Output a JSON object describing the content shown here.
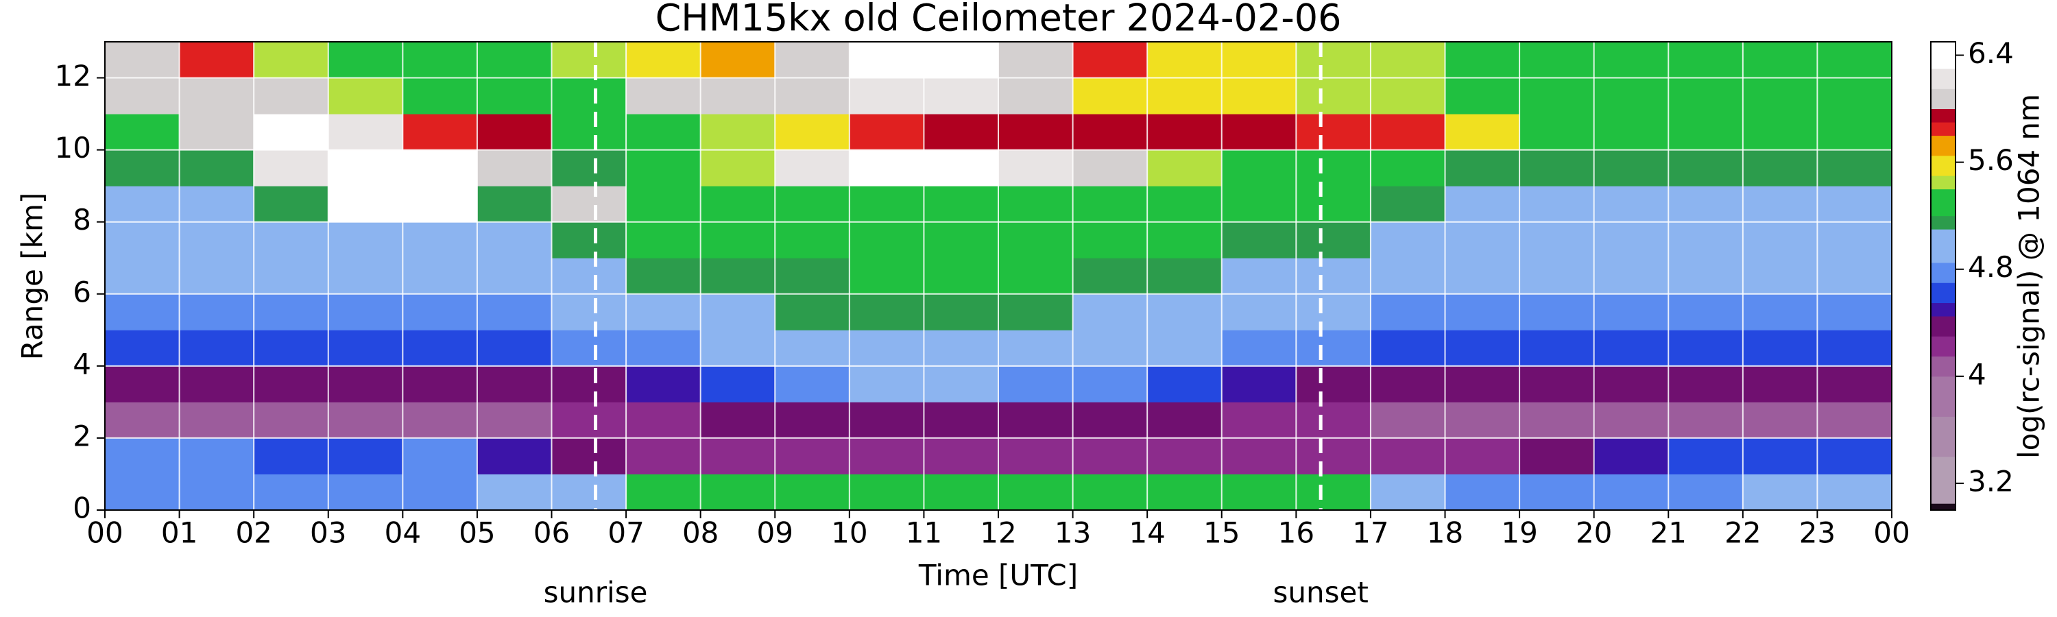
{
  "chart_data": {
    "type": "heatmap",
    "title": "CHM15kx old Ceilometer 2024-02-06",
    "xlabel": "Time [UTC]",
    "ylabel": "Range [km]",
    "colorbar_label": "log(rc-signal) @ 1064 nm",
    "xlim": [
      0,
      24
    ],
    "xticks": [
      {
        "value": 0,
        "label": "00"
      },
      {
        "value": 1,
        "label": "01"
      },
      {
        "value": 2,
        "label": "02"
      },
      {
        "value": 3,
        "label": "03"
      },
      {
        "value": 4,
        "label": "04"
      },
      {
        "value": 5,
        "label": "05"
      },
      {
        "value": 6,
        "label": "06"
      },
      {
        "value": 7,
        "label": "07"
      },
      {
        "value": 8,
        "label": "08"
      },
      {
        "value": 9,
        "label": "09"
      },
      10,
      11,
      12,
      13,
      14,
      15,
      16,
      17,
      18,
      19,
      20,
      21,
      22,
      23,
      {
        "value": 24,
        "label": "00"
      }
    ],
    "ylim": [
      0,
      13
    ],
    "yticks": [
      0,
      2,
      4,
      6,
      8,
      10,
      12
    ],
    "grid": true,
    "clim": [
      3.0,
      6.5
    ],
    "cticks": [
      3.2,
      4,
      4.8,
      5.6,
      6.4
    ],
    "colormap": [
      {
        "value": 3.0,
        "color": "#1a0a1a"
      },
      {
        "value": 3.05,
        "color": "#b49eb4"
      },
      {
        "value": 3.4,
        "color": "#ac8aac"
      },
      {
        "value": 3.7,
        "color": "#a676a6"
      },
      {
        "value": 4.0,
        "color": "#9c5c9c"
      },
      {
        "value": 4.15,
        "color": "#8c2c8c"
      },
      {
        "value": 4.3,
        "color": "#701070"
      },
      {
        "value": 4.45,
        "color": "#3c14a8"
      },
      {
        "value": 4.55,
        "color": "#2448e0"
      },
      {
        "value": 4.7,
        "color": "#5c8cf0"
      },
      {
        "value": 4.85,
        "color": "#8cb4f0"
      },
      {
        "value": 5.1,
        "color": "#2c9c4c"
      },
      {
        "value": 5.2,
        "color": "#20c040"
      },
      {
        "value": 5.4,
        "color": "#b4e040"
      },
      {
        "value": 5.5,
        "color": "#f0e020"
      },
      {
        "value": 5.65,
        "color": "#f0a000"
      },
      {
        "value": 5.8,
        "color": "#e02020"
      },
      {
        "value": 5.9,
        "color": "#b00020"
      },
      {
        "value": 6.0,
        "color": "#d4d0d0"
      },
      {
        "value": 6.15,
        "color": "#e8e4e4"
      },
      {
        "value": 6.3,
        "color": "#ffffff"
      }
    ],
    "x": [
      0,
      1,
      2,
      3,
      4,
      5,
      6,
      7,
      8,
      9,
      10,
      11,
      12,
      13,
      14,
      15,
      16,
      17,
      18,
      19,
      20,
      21,
      22,
      23
    ],
    "y": [
      0,
      1,
      2,
      3,
      4,
      5,
      6,
      7,
      8,
      9,
      10,
      11,
      12
    ],
    "z": [
      [
        4.8,
        4.8,
        4.8,
        4.8,
        4.8,
        4.9,
        4.9,
        5.2,
        5.2,
        5.2,
        5.2,
        5.2,
        5.2,
        5.2,
        5.2,
        5.2,
        5.2,
        4.9,
        4.8,
        4.8,
        4.8,
        4.8,
        4.9,
        4.9
      ],
      [
        4.7,
        4.7,
        4.6,
        4.6,
        4.7,
        4.5,
        4.3,
        4.2,
        4.2,
        4.2,
        4.2,
        4.2,
        4.2,
        4.2,
        4.2,
        4.2,
        4.2,
        4.2,
        4.2,
        4.3,
        4.5,
        4.6,
        4.6,
        4.6
      ],
      [
        4.1,
        4.1,
        4.1,
        4.1,
        4.1,
        4.1,
        4.2,
        4.2,
        4.3,
        4.4,
        4.4,
        4.4,
        4.4,
        4.3,
        4.3,
        4.2,
        4.2,
        4.1,
        4.1,
        4.1,
        4.1,
        4.1,
        4.1,
        4.1
      ],
      [
        4.3,
        4.3,
        4.3,
        4.3,
        4.3,
        4.3,
        4.4,
        4.5,
        4.6,
        4.8,
        4.9,
        4.9,
        4.8,
        4.7,
        4.6,
        4.5,
        4.4,
        4.3,
        4.3,
        4.3,
        4.3,
        4.3,
        4.3,
        4.3
      ],
      [
        4.6,
        4.6,
        4.6,
        4.6,
        4.6,
        4.6,
        4.7,
        4.8,
        4.9,
        5.0,
        5.0,
        5.0,
        5.0,
        5.0,
        4.9,
        4.8,
        4.7,
        4.6,
        4.6,
        4.6,
        4.6,
        4.6,
        4.6,
        4.6
      ],
      [
        4.8,
        4.8,
        4.8,
        4.8,
        4.8,
        4.8,
        4.9,
        5.0,
        5.0,
        5.1,
        5.1,
        5.1,
        5.1,
        5.0,
        5.0,
        4.9,
        4.9,
        4.8,
        4.8,
        4.8,
        4.8,
        4.8,
        4.8,
        4.8
      ],
      [
        4.9,
        4.9,
        4.9,
        4.9,
        4.9,
        4.9,
        5.0,
        5.1,
        5.1,
        5.1,
        5.2,
        5.2,
        5.2,
        5.1,
        5.1,
        5.0,
        5.0,
        4.9,
        4.9,
        4.9,
        4.9,
        4.9,
        4.9,
        4.9
      ],
      [
        5.0,
        5.0,
        5.0,
        5.0,
        5.0,
        5.0,
        5.1,
        5.2,
        5.2,
        5.2,
        5.3,
        5.3,
        5.3,
        5.2,
        5.2,
        5.1,
        5.1,
        5.0,
        5.0,
        5.0,
        5.0,
        5.0,
        5.0,
        5.0
      ],
      [
        5.0,
        5.0,
        5.1,
        6.3,
        6.3,
        5.1,
        6.0,
        5.2,
        5.3,
        5.3,
        5.3,
        5.3,
        5.3,
        5.3,
        5.3,
        5.2,
        5.2,
        5.1,
        5.0,
        5.0,
        5.0,
        5.0,
        5.0,
        5.0
      ],
      [
        5.1,
        5.1,
        6.2,
        6.3,
        6.3,
        6.0,
        5.1,
        5.3,
        5.4,
        6.2,
        6.3,
        6.3,
        6.2,
        6.1,
        5.4,
        5.3,
        5.3,
        5.2,
        5.1,
        5.1,
        5.1,
        5.1,
        5.1,
        5.1
      ],
      [
        5.3,
        6.1,
        6.3,
        6.2,
        5.8,
        5.9,
        5.2,
        5.3,
        5.4,
        5.6,
        5.8,
        5.9,
        5.9,
        5.9,
        5.9,
        5.9,
        5.8,
        5.8,
        5.6,
        5.3,
        5.2,
        5.2,
        5.2,
        5.2
      ],
      [
        6.0,
        6.1,
        6.0,
        5.4,
        5.3,
        5.3,
        5.3,
        6.0,
        6.1,
        6.1,
        6.2,
        6.2,
        6.0,
        5.6,
        5.5,
        5.5,
        5.4,
        5.4,
        5.3,
        5.3,
        5.3,
        5.3,
        5.3,
        5.3
      ],
      [
        6.0,
        5.8,
        5.4,
        5.3,
        5.3,
        5.3,
        5.4,
        5.6,
        5.7,
        6.1,
        6.3,
        6.3,
        6.0,
        5.8,
        5.6,
        5.5,
        5.4,
        5.4,
        5.3,
        5.3,
        5.3,
        5.3,
        5.3,
        5.3
      ]
    ],
    "annotations": [
      {
        "label": "sunrise",
        "x": 6.59
      },
      {
        "label": "sunset",
        "x": 16.33
      }
    ]
  }
}
